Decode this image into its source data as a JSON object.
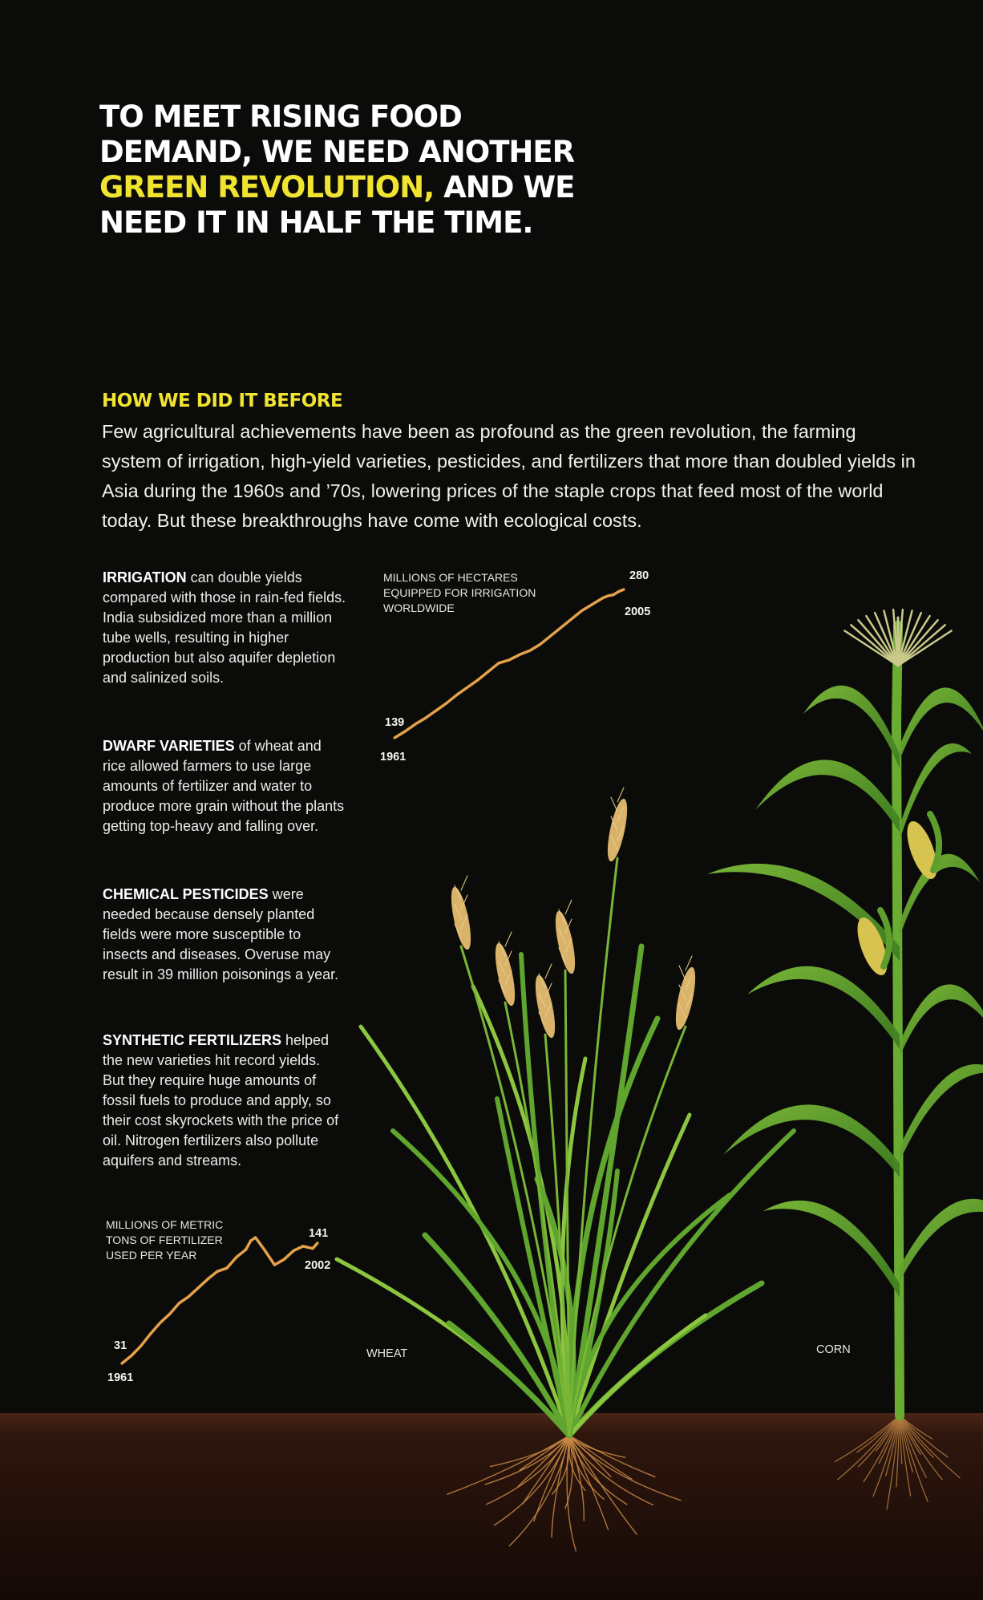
{
  "headline": {
    "line1": "TO MEET RISING FOOD",
    "line2": "DEMAND, WE NEED ANOTHER",
    "highlight": "GREEN REVOLUTION,",
    "line3_rest": " AND WE",
    "line4": "NEED IT IN HALF THE TIME."
  },
  "section_title": "HOW WE DID IT BEFORE",
  "intro": "Few agricultural achievements have been as profound as the green revolution, the farming system of irrigation, high-yield varieties, pesticides, and fertilizers that more than doubled yields in Asia during the 1960s and ’70s, lowering prices of the staple crops that feed most of the world today. But these breakthroughs have come with ecological costs.",
  "notes": [
    {
      "lead": "IRRIGATION",
      "text": " can double yields compared with those in rain-fed fields. India subsidized more than a million tube wells, resulting in higher production but also aquifer depletion and salinized soils."
    },
    {
      "lead": "DWARF VARIETIES",
      "text": " of wheat and rice allowed farmers to use large amounts of fertilizer and water to produce more grain without the plants getting top-heavy and falling over."
    },
    {
      "lead": "CHEMICAL PESTICIDES",
      "text": " were needed because densely planted fields were more susceptible to insects and diseases. Overuse may result in 39 million poisonings a year."
    },
    {
      "lead": "SYNTHETIC FERTILIZERS",
      "text": " helped the new varieties hit record yields. But they require huge amounts of fossil fuels to produce and apply, so their cost skyrockets with the price of oil. Nitrogen fertilizers also pollute aquifers and streams."
    }
  ],
  "plants": {
    "wheat": "WHEAT",
    "corn": "CORN"
  },
  "colors": {
    "background": "#0b0b0a",
    "highlight": "#f0e431",
    "line": "#e3a14a",
    "soil": "#3a1d12"
  },
  "chart_data": [
    {
      "type": "line",
      "title": "MILLIONS OF HECTARES EQUIPPED FOR IRRIGATION WORLDWIDE",
      "x_start_label": "1961",
      "x_end_label": "2005",
      "start_value_label": "139",
      "end_value_label": "280",
      "x": [
        1961,
        1963,
        1965,
        1967,
        1969,
        1971,
        1973,
        1975,
        1977,
        1979,
        1981,
        1983,
        1985,
        1987,
        1989,
        1991,
        1993,
        1995,
        1997,
        1999,
        2001,
        2002,
        2003,
        2004,
        2005
      ],
      "values": [
        139,
        145,
        152,
        158,
        165,
        172,
        180,
        187,
        194,
        202,
        210,
        213,
        218,
        222,
        228,
        236,
        244,
        252,
        260,
        266,
        272,
        274,
        275,
        278,
        280
      ],
      "ylim": [
        139,
        280
      ]
    },
    {
      "type": "line",
      "title": "MILLIONS OF METRIC TONS OF FERTILIZER USED PER YEAR",
      "x_start_label": "1961",
      "x_end_label": "2002",
      "start_value_label": "31",
      "end_value_label": "141",
      "x": [
        1961,
        1963,
        1965,
        1967,
        1969,
        1971,
        1973,
        1975,
        1977,
        1979,
        1981,
        1983,
        1985,
        1987,
        1988,
        1989,
        1990,
        1991,
        1993,
        1995,
        1997,
        1999,
        2001,
        2002
      ],
      "values": [
        31,
        38,
        47,
        58,
        68,
        76,
        86,
        92,
        100,
        108,
        115,
        118,
        128,
        135,
        143,
        146,
        140,
        134,
        121,
        126,
        134,
        138,
        136,
        141
      ],
      "ylim": [
        31,
        146
      ]
    }
  ]
}
